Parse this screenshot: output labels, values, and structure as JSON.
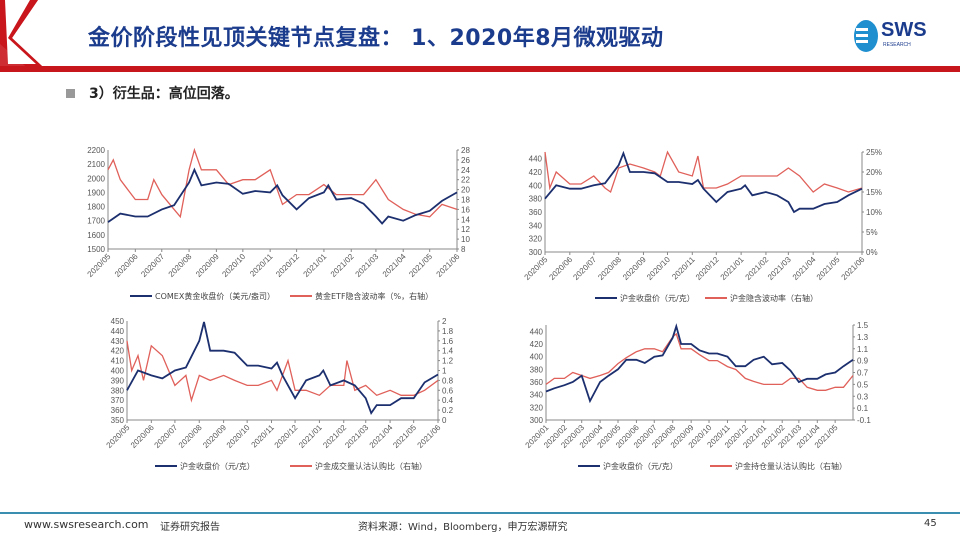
{
  "header": {
    "title": "金价阶段性见顶关键节点复盘： 1、2020年8月微观驱动",
    "logo_text": "SWS",
    "logo_sub": "RESEARCH",
    "accent": "#c8161d",
    "title_color": "#1b3b8c"
  },
  "subtitle": "3）衍生品：高位回落。",
  "footer": {
    "website": "www.swsresearch.com",
    "report_type": "证券研究报告",
    "source": "资料来源：Wind，Bloomberg，申万宏源研究",
    "page": "45"
  },
  "chart_data": [
    {
      "type": "line",
      "title": "",
      "xlim": [
        "2020-05-01",
        "2021-06-01"
      ],
      "xticks": [
        "2020/05",
        "2020/06",
        "2020/07",
        "2020/08",
        "2020/09",
        "2020/10",
        "2020/11",
        "2020/12",
        "2021/01",
        "2021/02",
        "2021/03",
        "2021/04",
        "2021/05",
        "2021/06"
      ],
      "ylim": [
        1500,
        2200
      ],
      "yticks": [
        1500,
        1600,
        1700,
        1800,
        1900,
        2000,
        2100,
        2200
      ],
      "y2lim": [
        8,
        28
      ],
      "y2ticks": [
        8,
        10,
        12,
        14,
        16,
        18,
        20,
        22,
        24,
        26,
        28
      ],
      "series": [
        {
          "name": "COMEX黄金收盘价（美元/盎司）",
          "axis": "left",
          "color": "#1c2f6e",
          "x": [
            "2020-05-01",
            "2020-05-15",
            "2020-06-01",
            "2020-06-15",
            "2020-07-01",
            "2020-07-15",
            "2020-08-01",
            "2020-08-07",
            "2020-08-15",
            "2020-09-01",
            "2020-09-15",
            "2020-10-01",
            "2020-10-15",
            "2020-11-01",
            "2020-11-09",
            "2020-11-15",
            "2020-12-01",
            "2020-12-15",
            "2021-01-01",
            "2021-01-06",
            "2021-01-15",
            "2021-02-01",
            "2021-02-15",
            "2021-03-01",
            "2021-03-08",
            "2021-03-15",
            "2021-04-01",
            "2021-04-15",
            "2021-05-01",
            "2021-05-15",
            "2021-06-01"
          ],
          "values": [
            1690,
            1750,
            1730,
            1730,
            1780,
            1810,
            1970,
            2060,
            1950,
            1970,
            1960,
            1890,
            1910,
            1900,
            1950,
            1880,
            1780,
            1860,
            1900,
            1950,
            1850,
            1860,
            1820,
            1730,
            1680,
            1730,
            1700,
            1740,
            1770,
            1840,
            1900
          ]
        },
        {
          "name": "黄金ETF隐含波动率（%，右轴）",
          "axis": "right",
          "color": "#e0605a",
          "x": [
            "2020-05-01",
            "2020-05-07",
            "2020-05-15",
            "2020-06-01",
            "2020-06-15",
            "2020-06-22",
            "2020-07-01",
            "2020-07-15",
            "2020-07-22",
            "2020-08-01",
            "2020-08-07",
            "2020-08-15",
            "2020-09-01",
            "2020-09-15",
            "2020-10-01",
            "2020-10-15",
            "2020-11-01",
            "2020-11-15",
            "2020-12-01",
            "2020-12-15",
            "2021-01-01",
            "2021-01-15",
            "2021-02-01",
            "2021-02-15",
            "2021-03-01",
            "2021-03-15",
            "2021-04-01",
            "2021-04-15",
            "2021-05-01",
            "2021-05-15",
            "2021-06-01"
          ],
          "values": [
            24,
            26,
            22,
            18,
            18,
            22,
            19,
            16,
            14.5,
            24,
            28,
            24,
            24,
            21,
            22,
            22,
            24,
            17,
            19,
            19,
            21,
            19,
            19,
            19,
            22,
            18,
            16,
            15,
            14.5,
            17,
            16
          ]
        }
      ]
    },
    {
      "type": "line",
      "title": "",
      "xlim": [
        "2020-05-01",
        "2021-06-01"
      ],
      "xticks": [
        "2020/05",
        "2020/06",
        "2020/07",
        "2020/08",
        "2020/09",
        "2020/10",
        "2020/11",
        "2020/12",
        "2021/01",
        "2021/02",
        "2021/03",
        "2021/04",
        "2021/05",
        "2021/06"
      ],
      "ylim": [
        300,
        450
      ],
      "yticks": [
        300,
        320,
        340,
        360,
        380,
        400,
        420,
        440
      ],
      "y2lim": [
        0,
        25
      ],
      "y2ticks": [
        "0%",
        "5%",
        "10%",
        "15%",
        "20%",
        "25%"
      ],
      "series": [
        {
          "name": "沪金收盘价（元/克）",
          "axis": "left",
          "color": "#1c2f6e",
          "x": [
            "2020-05-01",
            "2020-05-15",
            "2020-06-01",
            "2020-06-15",
            "2020-07-01",
            "2020-07-15",
            "2020-08-01",
            "2020-08-07",
            "2020-08-15",
            "2020-09-01",
            "2020-09-15",
            "2020-10-01",
            "2020-10-15",
            "2020-11-01",
            "2020-11-08",
            "2020-11-15",
            "2020-12-01",
            "2020-12-15",
            "2021-01-01",
            "2021-01-06",
            "2021-01-15",
            "2021-02-01",
            "2021-02-15",
            "2021-03-01",
            "2021-03-08",
            "2021-03-15",
            "2021-04-01",
            "2021-04-15",
            "2021-05-01",
            "2021-05-15",
            "2021-06-01"
          ],
          "values": [
            380,
            400,
            395,
            395,
            400,
            403,
            430,
            448,
            420,
            420,
            418,
            405,
            405,
            402,
            408,
            395,
            375,
            390,
            395,
            400,
            385,
            390,
            385,
            375,
            360,
            365,
            365,
            372,
            375,
            385,
            395
          ]
        },
        {
          "name": "沪金隐含波动率（右轴）",
          "axis": "right",
          "color": "#e0605a",
          "x": [
            "2020-05-01",
            "2020-05-07",
            "2020-05-15",
            "2020-06-01",
            "2020-06-15",
            "2020-07-01",
            "2020-07-15",
            "2020-07-22",
            "2020-08-01",
            "2020-08-15",
            "2020-09-01",
            "2020-09-15",
            "2020-09-22",
            "2020-10-01",
            "2020-10-15",
            "2020-11-01",
            "2020-11-08",
            "2020-11-15",
            "2020-12-01",
            "2020-12-15",
            "2021-01-01",
            "2021-01-15",
            "2021-02-01",
            "2021-02-15",
            "2021-03-01",
            "2021-03-15",
            "2021-04-01",
            "2021-04-15",
            "2021-05-01",
            "2021-05-15",
            "2021-06-01"
          ],
          "values": [
            25,
            16,
            20,
            17,
            17,
            19,
            16,
            15,
            21,
            22,
            21,
            20,
            19,
            25,
            20,
            19,
            24,
            16,
            16,
            17,
            19,
            19,
            19,
            19,
            21,
            19,
            15,
            17,
            16,
            15,
            16
          ]
        }
      ]
    },
    {
      "type": "line",
      "title": "",
      "xlim": [
        "2020-05-01",
        "2021-06-01"
      ],
      "xticks": [
        "2020/05",
        "2020/06",
        "2020/07",
        "2020/08",
        "2020/09",
        "2020/10",
        "2020/11",
        "2020/12",
        "2021/01",
        "2021/02",
        "2021/03",
        "2021/04",
        "2021/05",
        "2021/06"
      ],
      "ylim": [
        350,
        450
      ],
      "yticks": [
        350,
        360,
        370,
        380,
        390,
        400,
        410,
        420,
        430,
        440,
        450
      ],
      "y2lim": [
        0,
        2
      ],
      "y2ticks": [
        0,
        0.2,
        0.4,
        0.6,
        0.8,
        1,
        1.2,
        1.4,
        1.6,
        1.8,
        2
      ],
      "series": [
        {
          "name": "沪金收盘价（元/克）",
          "axis": "left",
          "color": "#1c2f6e",
          "x": [
            "2020-05-01",
            "2020-05-15",
            "2020-06-01",
            "2020-06-15",
            "2020-07-01",
            "2020-07-15",
            "2020-08-01",
            "2020-08-07",
            "2020-08-15",
            "2020-09-01",
            "2020-09-15",
            "2020-10-01",
            "2020-10-15",
            "2020-11-01",
            "2020-11-08",
            "2020-11-15",
            "2020-12-01",
            "2020-12-15",
            "2021-01-01",
            "2021-01-06",
            "2021-01-15",
            "2021-02-01",
            "2021-02-15",
            "2021-03-01",
            "2021-03-08",
            "2021-03-15",
            "2021-04-01",
            "2021-04-15",
            "2021-05-01",
            "2021-05-15",
            "2021-06-01"
          ],
          "values": [
            380,
            400,
            395,
            392,
            400,
            403,
            430,
            449,
            420,
            420,
            418,
            405,
            405,
            402,
            408,
            395,
            372,
            390,
            395,
            400,
            385,
            390,
            385,
            372,
            357,
            365,
            365,
            372,
            372,
            388,
            396
          ]
        },
        {
          "name": "沪金成交量认沽认购比（右轴）",
          "axis": "right",
          "color": "#e0605a",
          "x": [
            "2020-05-01",
            "2020-05-07",
            "2020-05-15",
            "2020-05-22",
            "2020-06-01",
            "2020-06-15",
            "2020-07-01",
            "2020-07-15",
            "2020-07-22",
            "2020-08-01",
            "2020-08-15",
            "2020-09-01",
            "2020-09-15",
            "2020-10-01",
            "2020-10-15",
            "2020-11-01",
            "2020-11-08",
            "2020-11-22",
            "2020-12-01",
            "2020-12-15",
            "2021-01-01",
            "2021-01-15",
            "2021-02-01",
            "2021-02-05",
            "2021-02-15",
            "2021-03-01",
            "2021-03-15",
            "2021-04-01",
            "2021-04-15",
            "2021-05-01",
            "2021-05-15",
            "2021-06-01"
          ],
          "values": [
            1.6,
            1.0,
            1.3,
            0.8,
            1.5,
            1.3,
            0.7,
            0.9,
            0.4,
            0.9,
            0.8,
            0.9,
            0.8,
            0.7,
            0.7,
            0.8,
            0.6,
            1.2,
            0.6,
            0.6,
            0.5,
            0.7,
            0.7,
            1.2,
            0.6,
            0.7,
            0.5,
            0.6,
            0.5,
            0.5,
            0.6,
            0.8
          ]
        }
      ]
    },
    {
      "type": "line",
      "title": "",
      "xlim": [
        "2020-01-01",
        "2021-05-31"
      ],
      "xticks": [
        "2020/01",
        "2020/02",
        "2020/03",
        "2020/04",
        "2020/05",
        "2020/06",
        "2020/07",
        "2020/08",
        "2020/09",
        "2020/10",
        "2020/11",
        "2020/12",
        "2021/01",
        "2021/02",
        "2021/03",
        "2021/04",
        "2021/05"
      ],
      "ylim": [
        300,
        450
      ],
      "yticks": [
        300,
        320,
        340,
        360,
        380,
        400,
        420,
        440
      ],
      "y2lim": [
        -0.1,
        1.5
      ],
      "y2ticks": [
        -0.1,
        0.1,
        0.3,
        0.5,
        0.7,
        0.9,
        1.1,
        1.3,
        1.5
      ],
      "series": [
        {
          "name": "沪金收盘价（元/克）",
          "axis": "left",
          "color": "#1c2f6e",
          "x": [
            "2020-01-01",
            "2020-01-15",
            "2020-02-01",
            "2020-02-15",
            "2020-03-01",
            "2020-03-15",
            "2020-04-01",
            "2020-04-15",
            "2020-05-01",
            "2020-05-15",
            "2020-06-01",
            "2020-06-15",
            "2020-07-01",
            "2020-07-15",
            "2020-08-01",
            "2020-08-07",
            "2020-08-15",
            "2020-09-01",
            "2020-09-15",
            "2020-10-01",
            "2020-10-15",
            "2020-11-01",
            "2020-11-15",
            "2020-12-01",
            "2020-12-15",
            "2021-01-01",
            "2021-01-15",
            "2021-02-01",
            "2021-02-15",
            "2021-03-01",
            "2021-03-15",
            "2021-04-01",
            "2021-04-15",
            "2021-05-01",
            "2021-05-15",
            "2021-05-31"
          ],
          "values": [
            345,
            350,
            355,
            360,
            370,
            330,
            360,
            370,
            380,
            395,
            395,
            390,
            400,
            402,
            430,
            448,
            420,
            420,
            410,
            405,
            405,
            400,
            385,
            385,
            395,
            400,
            388,
            390,
            378,
            360,
            365,
            365,
            372,
            375,
            385,
            395
          ]
        },
        {
          "name": "沪金持仓量认沽认购比（右轴）",
          "axis": "right",
          "color": "#e0605a",
          "x": [
            "2020-01-01",
            "2020-01-15",
            "2020-02-01",
            "2020-02-15",
            "2020-03-01",
            "2020-03-15",
            "2020-04-01",
            "2020-04-15",
            "2020-05-01",
            "2020-05-15",
            "2020-06-01",
            "2020-06-15",
            "2020-07-01",
            "2020-07-15",
            "2020-08-01",
            "2020-08-07",
            "2020-08-15",
            "2020-09-01",
            "2020-09-15",
            "2020-10-01",
            "2020-10-15",
            "2020-11-01",
            "2020-11-15",
            "2020-12-01",
            "2020-12-15",
            "2021-01-01",
            "2021-01-15",
            "2021-02-01",
            "2021-02-15",
            "2021-03-01",
            "2021-03-15",
            "2021-04-01",
            "2021-04-15",
            "2021-05-01",
            "2021-05-15",
            "2021-05-31"
          ],
          "values": [
            0.5,
            0.6,
            0.6,
            0.7,
            0.65,
            0.6,
            0.65,
            0.7,
            0.85,
            0.95,
            1.05,
            1.1,
            1.1,
            1.05,
            1.3,
            1.35,
            1.1,
            1.1,
            1.0,
            0.9,
            0.9,
            0.8,
            0.75,
            0.6,
            0.55,
            0.5,
            0.5,
            0.5,
            0.6,
            0.6,
            0.45,
            0.4,
            0.4,
            0.45,
            0.45,
            0.65
          ]
        }
      ]
    }
  ]
}
